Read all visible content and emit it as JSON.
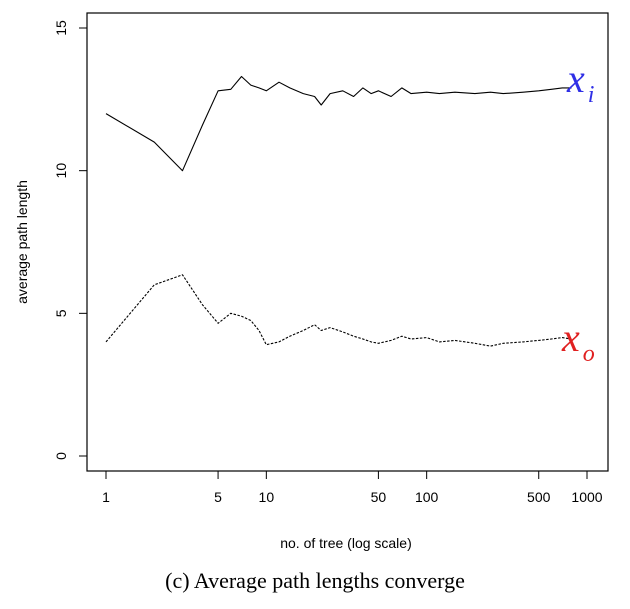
{
  "caption": "(c) Average path lengths converge",
  "chart_data": {
    "type": "line",
    "title": "",
    "xlabel": "no. of tree (log scale)",
    "ylabel": "average path length",
    "x_scale": "log",
    "xlim": [
      1,
      1000
    ],
    "ylim": [
      0,
      15
    ],
    "x_ticks": [
      1,
      5,
      10,
      50,
      100,
      500,
      1000
    ],
    "x_tick_labels": [
      "1",
      "5",
      "10",
      "50",
      "100",
      "500",
      "1000"
    ],
    "y_ticks": [
      0,
      5,
      10,
      15
    ],
    "y_tick_labels": [
      "0",
      "5",
      "10",
      "15"
    ],
    "grid": false,
    "series": [
      {
        "name": "x_i",
        "annotation": {
          "base": "x",
          "sub": "i",
          "color": "#2f2fe6"
        },
        "line_style": "solid",
        "color": "#000000",
        "x": [
          1,
          2,
          3,
          4,
          5,
          6,
          7,
          8,
          9,
          10,
          12,
          14,
          17,
          20,
          22,
          25,
          30,
          35,
          40,
          45,
          50,
          60,
          70,
          80,
          100,
          120,
          150,
          200,
          250,
          300,
          400,
          500,
          600,
          700,
          800
        ],
        "y": [
          12.0,
          11.0,
          10.0,
          11.6,
          12.8,
          12.85,
          13.3,
          13.0,
          12.9,
          12.8,
          13.1,
          12.9,
          12.7,
          12.6,
          12.3,
          12.7,
          12.8,
          12.6,
          12.9,
          12.7,
          12.8,
          12.6,
          12.9,
          12.7,
          12.75,
          12.7,
          12.75,
          12.7,
          12.75,
          12.7,
          12.75,
          12.8,
          12.85,
          12.9,
          12.9
        ]
      },
      {
        "name": "x_o",
        "annotation": {
          "base": "x",
          "sub": "o",
          "color": "#e02020"
        },
        "line_style": "dashed",
        "color": "#000000",
        "x": [
          1,
          2,
          3,
          4,
          5,
          6,
          7,
          8,
          9,
          10,
          12,
          14,
          17,
          20,
          22,
          25,
          30,
          35,
          40,
          45,
          50,
          60,
          70,
          80,
          100,
          120,
          150,
          200,
          250,
          300,
          400,
          500,
          600,
          700,
          800
        ],
        "y": [
          4.0,
          6.0,
          6.35,
          5.3,
          4.65,
          5.0,
          4.9,
          4.75,
          4.4,
          3.9,
          4.0,
          4.2,
          4.4,
          4.6,
          4.4,
          4.5,
          4.35,
          4.2,
          4.1,
          4.0,
          3.95,
          4.05,
          4.2,
          4.1,
          4.15,
          4.0,
          4.05,
          3.95,
          3.85,
          3.95,
          4.0,
          4.05,
          4.1,
          4.15,
          4.1
        ]
      }
    ]
  }
}
